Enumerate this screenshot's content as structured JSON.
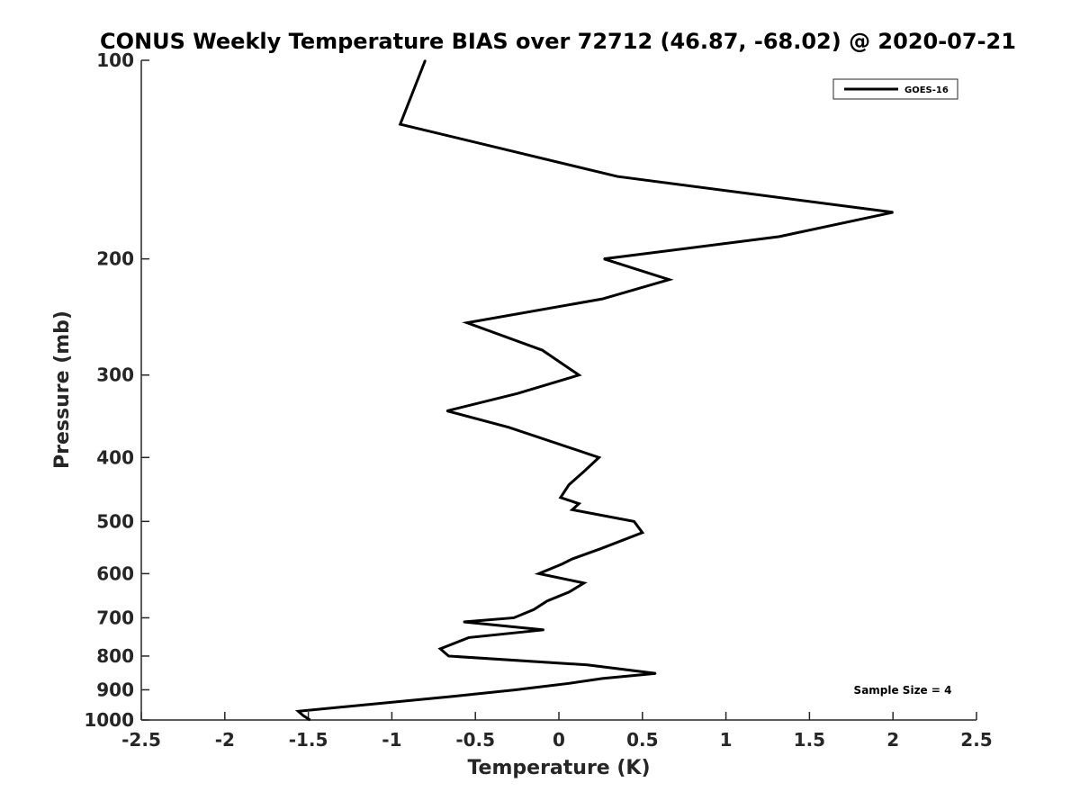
{
  "chart_data": {
    "type": "line",
    "title": "CONUS Weekly Temperature BIAS over 72712 (46.87, -68.02) @ 2020-07-21",
    "xlabel": "Temperature (K)",
    "ylabel": "Pressure (mb)",
    "xlim": [
      -2.5,
      2.5
    ],
    "ylim": [
      100,
      1000
    ],
    "y_scale": "log",
    "y_reversed": true,
    "grid": false,
    "legend_position": "top-right",
    "x_ticks": [
      -2.5,
      -2,
      -1.5,
      -1,
      -0.5,
      0,
      0.5,
      1,
      1.5,
      2,
      2.5
    ],
    "x_tick_labels": [
      "-2.5",
      "-2",
      "-1.5",
      "-1",
      "-0.5",
      "0",
      "0.5",
      "1",
      "1.5",
      "2",
      "2.5"
    ],
    "y_ticks": [
      100,
      200,
      300,
      400,
      500,
      600,
      700,
      800,
      900,
      1000
    ],
    "y_tick_labels": [
      "100",
      "200",
      "300",
      "400",
      "500",
      "600",
      "700",
      "800",
      "900",
      "1000"
    ],
    "series": [
      {
        "name": "GOES-16",
        "color": "#000000",
        "points": [
          {
            "x": -0.8,
            "p": 100
          },
          {
            "x": -0.95,
            "p": 125
          },
          {
            "x": 0.35,
            "p": 150
          },
          {
            "x": 2.0,
            "p": 170
          },
          {
            "x": 1.32,
            "p": 185
          },
          {
            "x": 0.27,
            "p": 200
          },
          {
            "x": 0.66,
            "p": 215
          },
          {
            "x": 0.26,
            "p": 230
          },
          {
            "x": -0.55,
            "p": 250
          },
          {
            "x": -0.1,
            "p": 275
          },
          {
            "x": 0.12,
            "p": 300
          },
          {
            "x": -0.25,
            "p": 320
          },
          {
            "x": -0.67,
            "p": 340
          },
          {
            "x": -0.3,
            "p": 360
          },
          {
            "x": 0.24,
            "p": 400
          },
          {
            "x": 0.15,
            "p": 420
          },
          {
            "x": 0.06,
            "p": 440
          },
          {
            "x": 0.01,
            "p": 460
          },
          {
            "x": 0.12,
            "p": 470
          },
          {
            "x": 0.08,
            "p": 480
          },
          {
            "x": 0.45,
            "p": 500
          },
          {
            "x": 0.5,
            "p": 520
          },
          {
            "x": 0.25,
            "p": 550
          },
          {
            "x": 0.08,
            "p": 570
          },
          {
            "x": 0.02,
            "p": 580
          },
          {
            "x": -0.12,
            "p": 600
          },
          {
            "x": 0.15,
            "p": 620
          },
          {
            "x": 0.06,
            "p": 640
          },
          {
            "x": -0.07,
            "p": 660
          },
          {
            "x": -0.15,
            "p": 680
          },
          {
            "x": -0.27,
            "p": 700
          },
          {
            "x": -0.57,
            "p": 710
          },
          {
            "x": -0.09,
            "p": 730
          },
          {
            "x": -0.54,
            "p": 750
          },
          {
            "x": -0.71,
            "p": 780
          },
          {
            "x": -0.66,
            "p": 800
          },
          {
            "x": 0.17,
            "p": 825
          },
          {
            "x": 0.58,
            "p": 850
          },
          {
            "x": 0.26,
            "p": 865
          },
          {
            "x": 0.06,
            "p": 880
          },
          {
            "x": -0.26,
            "p": 900
          },
          {
            "x": -0.62,
            "p": 920
          },
          {
            "x": -1.56,
            "p": 970
          },
          {
            "x": -1.53,
            "p": 985
          },
          {
            "x": -1.49,
            "p": 1000
          }
        ]
      }
    ],
    "annotation": "Sample Size = 4"
  }
}
